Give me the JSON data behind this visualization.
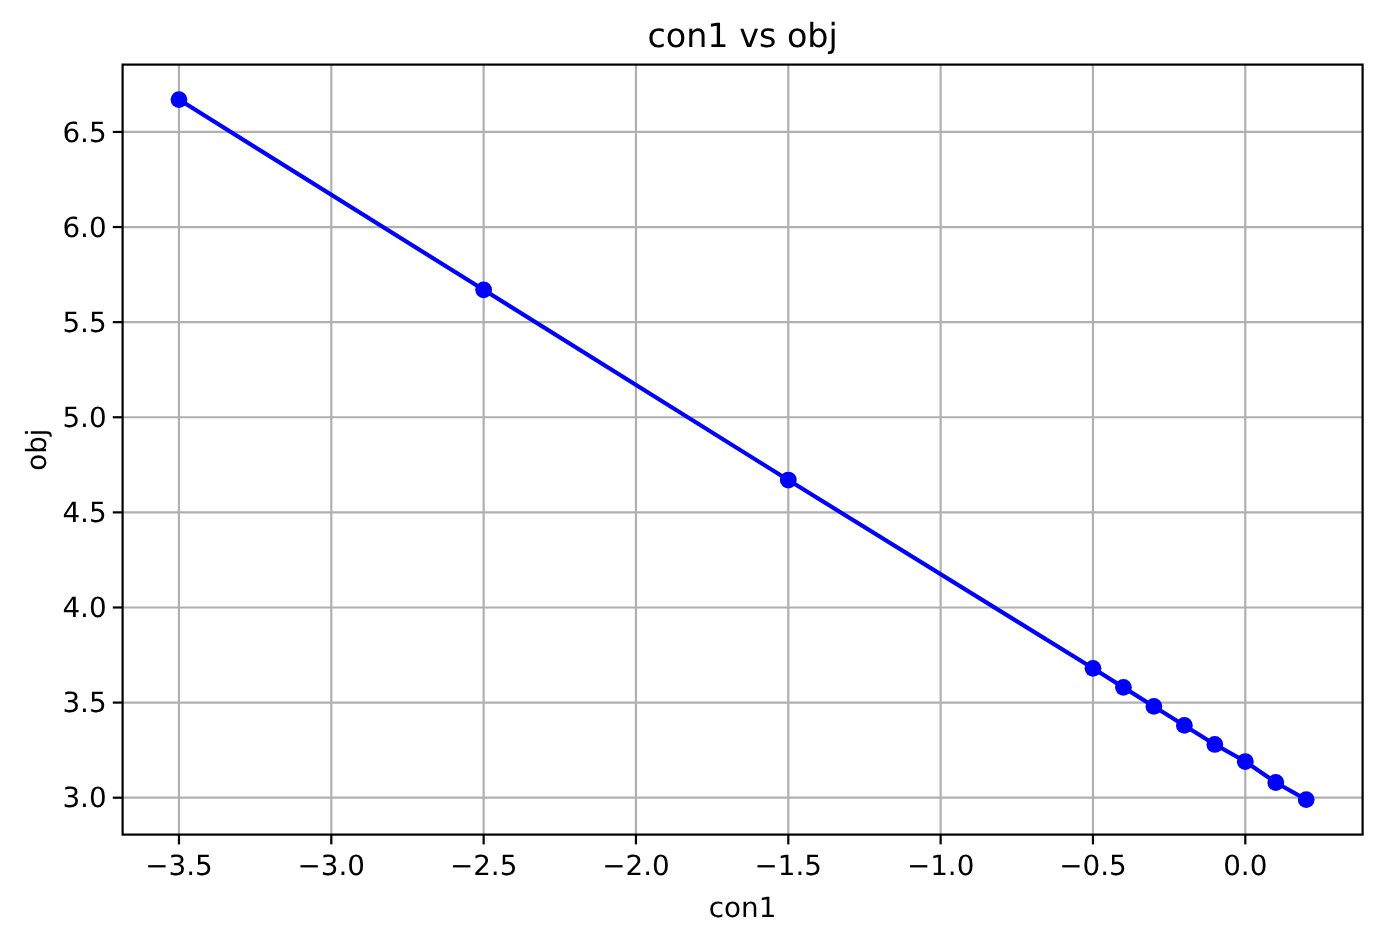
{
  "chart_data": {
    "type": "line",
    "title": "con1 vs obj",
    "xlabel": "con1",
    "ylabel": "obj",
    "x": [
      -3.5,
      -2.5,
      -1.5,
      -0.5,
      -0.4,
      -0.3,
      -0.2,
      -0.1,
      0.0,
      0.1,
      0.2
    ],
    "series": [
      {
        "color": "#0000ff",
        "values": [
          6.67,
          5.67,
          4.67,
          3.68,
          3.58,
          3.48,
          3.38,
          3.28,
          3.19,
          3.08,
          2.99
        ]
      }
    ],
    "xlim": [
      -3.685,
      0.385
    ],
    "ylim": [
      2.806,
      6.854
    ],
    "xticks": [
      {
        "value": -3.5,
        "label": "−3.5"
      },
      {
        "value": -3,
        "label": "−3.0"
      },
      {
        "value": -2.5,
        "label": "−2.5"
      },
      {
        "value": -2,
        "label": "−2.0"
      },
      {
        "value": -1.5,
        "label": "−1.5"
      },
      {
        "value": -1,
        "label": "−1.0"
      },
      {
        "value": -0.5,
        "label": "−0.5"
      },
      {
        "value": 0,
        "label": "0.0"
      }
    ],
    "yticks": [
      {
        "value": 3,
        "label": "3.0"
      },
      {
        "value": 3.5,
        "label": "3.5"
      },
      {
        "value": 4,
        "label": "4.0"
      },
      {
        "value": 4.5,
        "label": "4.5"
      },
      {
        "value": 5,
        "label": "5.0"
      },
      {
        "value": 5.5,
        "label": "5.5"
      },
      {
        "value": 6,
        "label": "6.0"
      },
      {
        "value": 6.5,
        "label": "6.5"
      }
    ],
    "grid": true,
    "marker": "circle",
    "line_style": "solid"
  }
}
